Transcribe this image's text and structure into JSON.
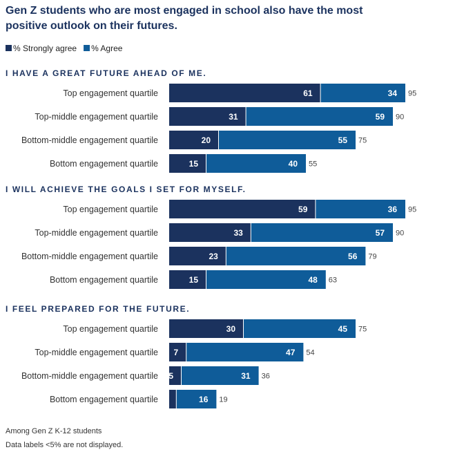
{
  "chart_data": {
    "type": "bar",
    "orientation": "horizontal",
    "stacked": true,
    "title": "Gen Z students who are most engaged in school also have the most positive outlook on their futures.",
    "legend": {
      "placement": "top-left",
      "items": [
        {
          "name": "% Strongly agree",
          "color": "#1b325e"
        },
        {
          "name": "% Agree",
          "color": "#0f5c99"
        }
      ]
    },
    "xlim": [
      0,
      100
    ],
    "grid": false,
    "panels": [
      {
        "heading": "I HAVE A GREAT FUTURE AHEAD OF ME.",
        "categories": [
          "Top engagement quartile",
          "Top-middle engagement quartile",
          "Bottom-middle engagement quartile",
          "Bottom engagement quartile"
        ],
        "series": [
          {
            "name": "% Strongly agree",
            "values": [
              61,
              31,
              20,
              15
            ]
          },
          {
            "name": "% Agree",
            "values": [
              34,
              59,
              55,
              40
            ]
          }
        ],
        "totals": [
          95,
          90,
          75,
          55
        ]
      },
      {
        "heading": "I WILL ACHIEVE THE GOALS I SET FOR MYSELF.",
        "categories": [
          "Top engagement quartile",
          "Top-middle engagement quartile",
          "Bottom-middle engagement quartile",
          "Bottom engagement quartile"
        ],
        "series": [
          {
            "name": "% Strongly agree",
            "values": [
              59,
              33,
              23,
              15
            ]
          },
          {
            "name": "% Agree",
            "values": [
              36,
              57,
              56,
              48
            ]
          }
        ],
        "totals": [
          95,
          90,
          79,
          63
        ]
      },
      {
        "heading": "I FEEL PREPARED FOR THE FUTURE.",
        "categories": [
          "Top engagement quartile",
          "Top-middle engagement quartile",
          "Bottom-middle engagement quartile",
          "Bottom engagement quartile"
        ],
        "series": [
          {
            "name": "% Strongly agree",
            "values": [
              30,
              7,
              5,
              3
            ]
          },
          {
            "name": "% Agree",
            "values": [
              45,
              47,
              31,
              16
            ]
          }
        ],
        "totals": [
          75,
          54,
          36,
          19
        ]
      }
    ],
    "label_threshold": 5,
    "notes": [
      "Among Gen Z K-12 students",
      "Data labels <5% are not displayed."
    ]
  }
}
